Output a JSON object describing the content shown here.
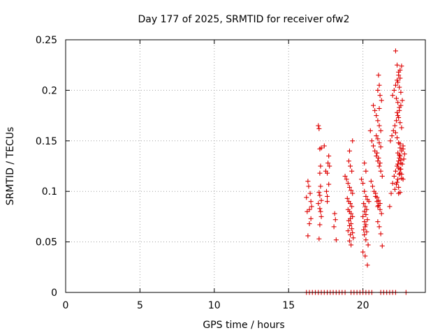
{
  "chart_data": {
    "type": "scatter",
    "title": "Day 177 of 2025, SRMTID for receiver ofw2",
    "xlabel": "GPS time / hours",
    "ylabel": "SRMTID / TECUs",
    "xlim": [
      0,
      24.2
    ],
    "ylim": [
      0,
      0.25
    ],
    "xticks": [
      0,
      5,
      10,
      15,
      20
    ],
    "xtick_labels": [
      "0",
      "5",
      "10",
      "15",
      "20"
    ],
    "yticks": [
      0,
      0.05,
      0.1,
      0.15,
      0.2,
      0.25
    ],
    "ytick_labels": [
      "0",
      "0.05",
      "0.1",
      "0.15",
      "0.2",
      "0.25"
    ],
    "grid": true,
    "marker": "+",
    "color": "#dd0000",
    "series": [
      {
        "name": "SRMTID",
        "x": [
          16.2,
          16.25,
          16.3,
          16.35,
          16.4,
          16.45,
          16.5,
          16.55,
          16.3,
          16.4,
          16.5,
          17.0,
          17.05,
          17.1,
          17.15,
          17.2,
          17.1,
          17.15,
          17.05,
          17.1,
          17.2,
          17.0,
          17.1,
          17.15,
          17.2,
          17.1,
          17.05,
          17.4,
          17.5,
          17.6,
          17.7,
          17.55,
          17.6,
          17.7,
          17.65,
          17.75,
          17.6,
          18.1,
          18.15,
          18.2,
          18.05,
          18.8,
          18.9,
          19.0,
          19.1,
          19.2,
          19.3,
          18.95,
          19.05,
          19.15,
          19.25,
          19.0,
          19.1,
          19.2,
          19.3,
          19.15,
          19.05,
          19.2,
          19.1,
          19.25,
          19.0,
          19.3,
          19.15,
          19.35,
          19.1,
          19.2,
          19.05,
          19.15,
          19.25,
          19.1,
          19.3,
          19.9,
          20.0,
          20.1,
          20.2,
          20.3,
          20.4,
          20.05,
          20.15,
          20.25,
          20.1,
          20.2,
          20.0,
          20.3,
          20.1,
          20.2,
          20.15,
          20.05,
          20.25,
          20.1,
          20.2,
          20.35,
          20.0,
          20.15,
          20.3,
          20.1,
          20.2,
          20.5,
          20.6,
          20.7,
          20.8,
          20.9,
          21.0,
          21.1,
          21.2,
          21.3,
          20.55,
          20.65,
          20.75,
          20.85,
          20.95,
          21.05,
          21.15,
          21.25,
          20.7,
          20.8,
          20.9,
          21.0,
          21.1,
          21.2,
          21.0,
          21.1,
          21.05,
          21.15,
          21.25,
          20.9,
          21.0,
          21.1,
          21.2,
          20.95,
          21.05,
          21.15,
          21.0,
          21.1,
          21.2,
          21.3,
          20.85,
          20.95,
          21.05,
          21.15,
          21.0,
          21.1,
          21.8,
          21.9,
          22.0,
          22.1,
          22.2,
          22.3,
          22.4,
          22.5,
          22.6,
          22.7,
          21.85,
          21.95,
          22.05,
          22.15,
          22.25,
          22.35,
          22.45,
          22.55,
          22.65,
          22.0,
          22.1,
          22.2,
          22.3,
          22.4,
          22.5,
          22.6,
          22.2,
          22.3,
          22.4,
          22.5,
          22.35,
          22.45,
          22.55,
          22.25,
          22.35,
          22.45,
          22.3,
          22.4,
          22.5,
          22.6,
          22.2,
          22.3,
          22.4,
          22.5,
          22.35,
          22.45,
          22.55,
          22.4,
          22.5,
          22.6,
          22.3,
          22.4,
          22.5,
          22.45,
          22.55,
          22.35,
          22.5,
          22.6,
          22.7,
          22.4,
          22.5,
          22.7,
          22.8,
          22.75,
          22.65,
          22.55,
          22.45,
          22.35,
          22.25,
          22.15,
          16.2,
          16.4,
          16.6,
          16.8,
          17.0,
          17.2,
          17.4,
          17.6,
          17.8,
          18.0,
          18.2,
          18.4,
          18.6,
          18.8,
          19.2,
          19.4,
          19.6,
          19.8,
          20.0,
          20.2,
          20.4,
          20.6,
          21.2,
          21.4,
          21.6,
          21.8,
          22.0,
          22.2,
          22.9
        ],
        "y": [
          0.094,
          0.08,
          0.11,
          0.105,
          0.082,
          0.098,
          0.09,
          0.085,
          0.056,
          0.068,
          0.073,
          0.165,
          0.162,
          0.142,
          0.125,
          0.143,
          0.118,
          0.105,
          0.099,
          0.096,
          0.091,
          0.088,
          0.083,
          0.08,
          0.075,
          0.067,
          0.053,
          0.145,
          0.12,
          0.118,
          0.107,
          0.1,
          0.095,
          0.135,
          0.128,
          0.125,
          0.09,
          0.078,
          0.072,
          0.052,
          0.065,
          0.115,
          0.112,
          0.108,
          0.104,
          0.101,
          0.098,
          0.093,
          0.09,
          0.088,
          0.085,
          0.082,
          0.08,
          0.078,
          0.075,
          0.073,
          0.071,
          0.068,
          0.066,
          0.063,
          0.061,
          0.059,
          0.057,
          0.054,
          0.051,
          0.047,
          0.13,
          0.125,
          0.12,
          0.14,
          0.15,
          0.112,
          0.108,
          0.1,
          0.095,
          0.092,
          0.09,
          0.088,
          0.085,
          0.082,
          0.08,
          0.077,
          0.075,
          0.072,
          0.07,
          0.067,
          0.065,
          0.062,
          0.06,
          0.057,
          0.052,
          0.047,
          0.04,
          0.036,
          0.027,
          0.128,
          0.12,
          0.16,
          0.15,
          0.145,
          0.14,
          0.135,
          0.13,
          0.125,
          0.12,
          0.115,
          0.11,
          0.105,
          0.1,
          0.095,
          0.09,
          0.086,
          0.082,
          0.078,
          0.185,
          0.18,
          0.175,
          0.17,
          0.165,
          0.16,
          0.2,
          0.205,
          0.215,
          0.195,
          0.19,
          0.155,
          0.152,
          0.148,
          0.144,
          0.138,
          0.133,
          0.128,
          0.07,
          0.065,
          0.058,
          0.046,
          0.098,
          0.094,
          0.091,
          0.088,
          0.085,
          0.182,
          0.085,
          0.098,
          0.108,
          0.115,
          0.12,
          0.125,
          0.13,
          0.135,
          0.14,
          0.145,
          0.15,
          0.155,
          0.16,
          0.165,
          0.17,
          0.175,
          0.18,
          0.185,
          0.19,
          0.195,
          0.2,
          0.205,
          0.21,
          0.215,
          0.22,
          0.224,
          0.239,
          0.225,
          0.218,
          0.212,
          0.208,
          0.203,
          0.198,
          0.192,
          0.188,
          0.183,
          0.178,
          0.173,
          0.168,
          0.163,
          0.158,
          0.153,
          0.148,
          0.143,
          0.138,
          0.133,
          0.128,
          0.123,
          0.118,
          0.113,
          0.109,
          0.104,
          0.099,
          0.136,
          0.131,
          0.127,
          0.122,
          0.117,
          0.112,
          0.098,
          0.147,
          0.142,
          0.137,
          0.132,
          0.127,
          0.122,
          0.117,
          0.112,
          0.107,
          0.102,
          0,
          0,
          0,
          0,
          0,
          0,
          0,
          0,
          0,
          0,
          0,
          0,
          0,
          0,
          0,
          0,
          0,
          0,
          0,
          0,
          0,
          0,
          0,
          0,
          0,
          0,
          0,
          0,
          0
        ]
      }
    ]
  }
}
